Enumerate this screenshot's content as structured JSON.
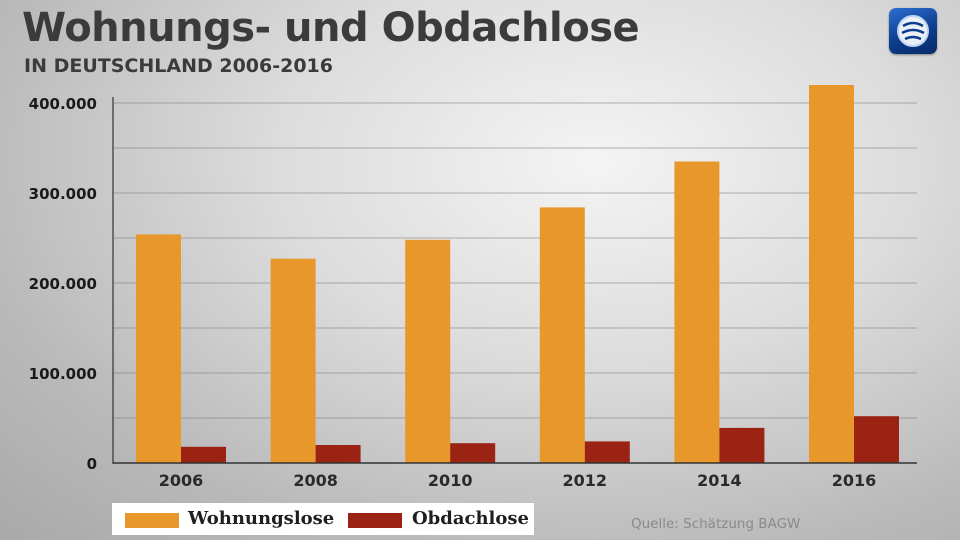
{
  "header": {
    "title": "Wohnungs- und Obdachlose",
    "subtitle": "IN DEUTSCHLAND 2006-2016"
  },
  "logo": {
    "icon": "tagesschau-logo-icon"
  },
  "source": "Quelle: Schätzung BAGW",
  "colors": {
    "wohnungslose": "#e8982a",
    "obdachlose": "#9b2314",
    "grid": "#7a7a7a"
  },
  "chart_data": {
    "type": "bar",
    "categories": [
      "2006",
      "2008",
      "2010",
      "2012",
      "2014",
      "2016"
    ],
    "series": [
      {
        "name": "Wohnungslose",
        "values": [
          254000,
          227000,
          248000,
          284000,
          335000,
          420000
        ]
      },
      {
        "name": "Obdachlose",
        "values": [
          18000,
          20000,
          22000,
          24000,
          39000,
          52000
        ]
      }
    ],
    "title": "Wohnungs- und Obdachlose",
    "subtitle": "IN DEUTSCHLAND 2006-2016",
    "xlabel": "",
    "ylabel": "",
    "ylim": [
      0,
      420000
    ],
    "yticks": [
      0,
      100000,
      200000,
      300000,
      400000
    ],
    "ytick_labels": [
      "0",
      "100.000",
      "200.000",
      "300.000",
      "400.000"
    ],
    "grid": true,
    "legend": "bottom-left"
  }
}
